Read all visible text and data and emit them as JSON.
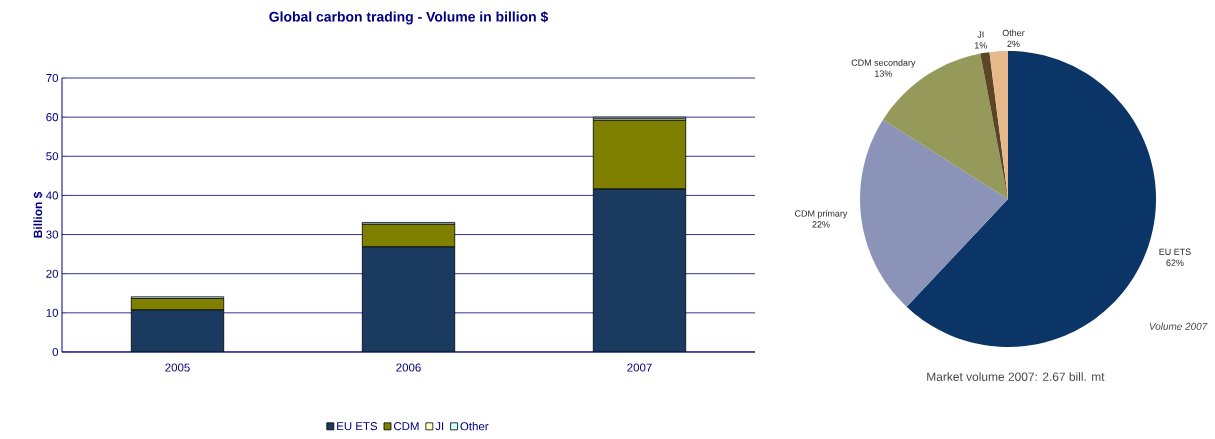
{
  "chart_data": [
    {
      "type": "bar",
      "title": "Global carbon trading - Volume in billion $",
      "ylabel": "Billion $",
      "categories": [
        "2005",
        "2006",
        "2007"
      ],
      "stacked": true,
      "series": [
        {
          "name": "EU ETS",
          "color": "#1b3a5f",
          "values": [
            10.8,
            26.9,
            41.7
          ]
        },
        {
          "name": "CDM",
          "color": "#808000",
          "values": [
            2.9,
            5.8,
            17.5
          ]
        },
        {
          "name": "JI",
          "color": "#ffffcc",
          "values": [
            null,
            null,
            0.4
          ]
        },
        {
          "name": "Other",
          "color": "#ccffff",
          "values": [
            0.4,
            0.4,
            0.4
          ]
        }
      ],
      "ylim": [
        0,
        70
      ],
      "yticks": [
        0,
        10,
        20,
        30,
        40,
        50,
        60,
        70
      ],
      "grid": "y",
      "legend": "bottom"
    },
    {
      "type": "pie",
      "categories": [
        "EU ETS",
        "CDM primary",
        "CDM secondary",
        "JI",
        "Other"
      ],
      "values": [
        62,
        22,
        13,
        1,
        2
      ],
      "value_labels": [
        "62%",
        "22%",
        "13%",
        "1%",
        "2%"
      ],
      "colors": [
        "#0a3566",
        "#8b93b8",
        "#959a5a",
        "#5a4525",
        "#e6b88a"
      ],
      "annotations": [
        "Volume 2007",
        "Market volume 2007: 2.67 bill. mt"
      ]
    }
  ]
}
